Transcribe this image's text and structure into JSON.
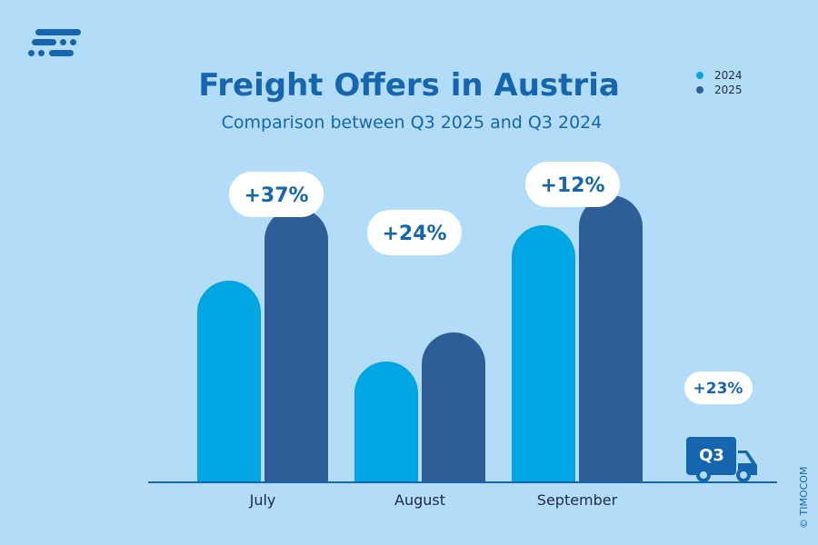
{
  "title": "Freight Offers in Austria",
  "subtitle": "Comparison between Q3 2025 and Q3 2024",
  "credit": "© TIMOCOM",
  "colors": {
    "background": "#b2dcf8",
    "series_2024": "#00a6e1",
    "series_2025": "#2e5e98",
    "accent": "#1566ae"
  },
  "icons": {
    "logo": "timocom-logo",
    "truck": "truck-icon"
  },
  "chart_data": {
    "type": "bar",
    "categories": [
      "July",
      "August",
      "September"
    ],
    "series": [
      {
        "name": "2024",
        "values": [
          222,
          133,
          283
        ]
      },
      {
        "name": "2025",
        "values": [
          302,
          165,
          316
        ]
      }
    ],
    "change_labels": [
      "+37%",
      "+24%",
      "+12%"
    ],
    "total": {
      "label": "Q3",
      "change": "+23%"
    },
    "legend_placement": "top-right",
    "grid": false
  }
}
